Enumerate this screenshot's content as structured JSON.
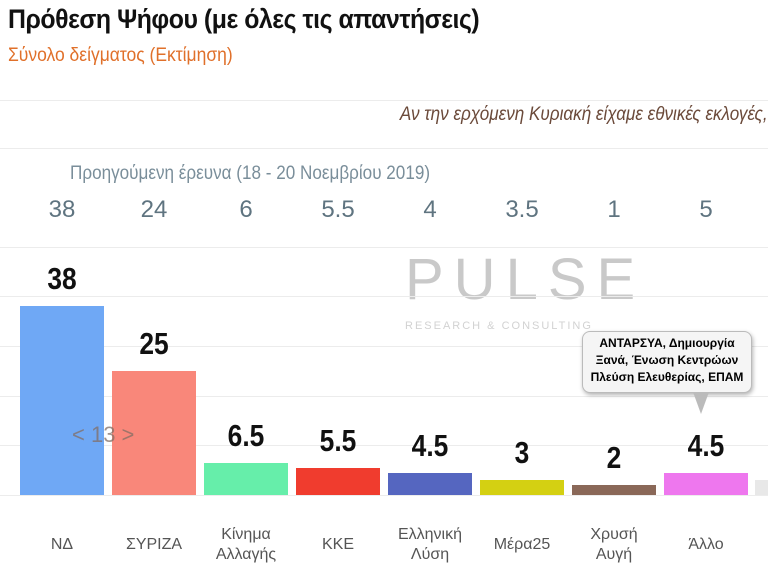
{
  "title": "Πρόθεση Ψήφου (με όλες τις απαντήσεις)",
  "subtitle": "Σύνολο δείγματος   (Εκτίμηση)",
  "question": "Αν την ερχόμενη Κυριακή είχαμε εθνικές εκλογές,",
  "watermark": {
    "logo": "PULSE",
    "tagline": "RESEARCH & CONSULTING"
  },
  "nav": "< 13 >",
  "callout": "ΑΝΤΑΡΣΥΑ, Δημιουργία Ξανά, Ένωση Κεντρώων Πλεύση Ελευθερίας, ΕΠΑΜ",
  "chart_data": {
    "type": "bar",
    "categories": [
      "ΝΔ",
      "ΣΥΡΙΖΑ",
      "Κίνημα\nΑλλαγής",
      "ΚΚΕ",
      "Ελληνική\nΛύση",
      "Μέρα25",
      "Χρυσή\nΑυγή",
      "Άλλο"
    ],
    "values": [
      38,
      25,
      6.5,
      5.5,
      4.5,
      3,
      2,
      4.5
    ],
    "value_labels": [
      "38",
      "25",
      "6.5",
      "5.5",
      "4.5",
      "3",
      "2",
      "4.5"
    ],
    "colors": [
      "#6fa8f5",
      "#f9877a",
      "#66eeaa",
      "#f03c2e",
      "#5566c0",
      "#d4d012",
      "#8a6858",
      "#ee77ee"
    ],
    "previous": {
      "label": "Προηγούμενη έρευνα  (18 - 20 Νοεμβρίου  2019)",
      "values": [
        "38",
        "24",
        "6",
        "5.5",
        "4",
        "3.5",
        "1",
        "5"
      ]
    },
    "ylim": [
      0,
      40
    ],
    "grid": true
  }
}
